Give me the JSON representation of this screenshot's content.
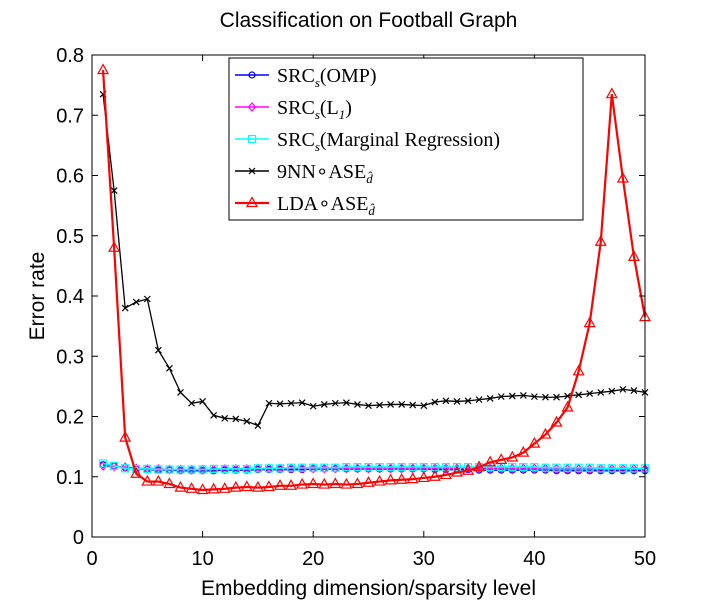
{
  "chart_data": {
    "type": "line",
    "title": "Classification on Football Graph",
    "xlabel": "Embedding dimension/sparsity level",
    "ylabel": "Error rate",
    "xlim": [
      0,
      50
    ],
    "ylim": [
      0,
      0.8
    ],
    "xticks": [
      0,
      10,
      20,
      30,
      40,
      50
    ],
    "yticks": [
      0,
      0.1,
      0.2,
      0.3,
      0.4,
      0.5,
      0.6,
      0.7,
      0.8
    ],
    "grid": false,
    "legend_position": "top-right",
    "x": [
      1,
      2,
      3,
      4,
      5,
      6,
      7,
      8,
      9,
      10,
      11,
      12,
      13,
      14,
      15,
      16,
      17,
      18,
      19,
      20,
      21,
      22,
      23,
      24,
      25,
      26,
      27,
      28,
      29,
      30,
      31,
      32,
      33,
      34,
      35,
      36,
      37,
      38,
      39,
      40,
      41,
      42,
      43,
      44,
      45,
      46,
      47,
      48,
      49,
      50
    ],
    "series": [
      {
        "name": "SRC(OMP)",
        "legend": {
          "base": "SRC",
          "sub": "s",
          "rest": "(OMP)"
        },
        "color": "#0000ff",
        "marker": "circle",
        "values": [
          0.12,
          0.118,
          0.115,
          0.113,
          0.112,
          0.111,
          0.111,
          0.11,
          0.11,
          0.11,
          0.11,
          0.111,
          0.111,
          0.111,
          0.112,
          0.112,
          0.112,
          0.112,
          0.112,
          0.113,
          0.113,
          0.113,
          0.113,
          0.113,
          0.113,
          0.113,
          0.113,
          0.113,
          0.113,
          0.113,
          0.112,
          0.112,
          0.112,
          0.112,
          0.111,
          0.111,
          0.111,
          0.111,
          0.111,
          0.111,
          0.111,
          0.11,
          0.11,
          0.11,
          0.11,
          0.11,
          0.11,
          0.11,
          0.11,
          0.11
        ]
      },
      {
        "name": "SRC(L1)",
        "legend": {
          "base": "SRC",
          "sub": "s",
          "rest": "(L",
          "sub2": "1",
          "rest2": ")"
        },
        "color": "#ff00ff",
        "marker": "diamond",
        "values": [
          0.118,
          0.117,
          0.116,
          0.114,
          0.113,
          0.113,
          0.112,
          0.112,
          0.112,
          0.112,
          0.112,
          0.113,
          0.113,
          0.113,
          0.114,
          0.114,
          0.114,
          0.114,
          0.114,
          0.114,
          0.114,
          0.114,
          0.114,
          0.114,
          0.114,
          0.114,
          0.114,
          0.114,
          0.114,
          0.114,
          0.114,
          0.114,
          0.114,
          0.114,
          0.114,
          0.114,
          0.114,
          0.114,
          0.114,
          0.114,
          0.114,
          0.113,
          0.113,
          0.113,
          0.113,
          0.113,
          0.113,
          0.113,
          0.113,
          0.113
        ]
      },
      {
        "name": "SRC(Marginal Regression)",
        "legend": {
          "base": "SRC",
          "sub": "s",
          "rest": "(Marginal Regression)"
        },
        "color": "#00ffff",
        "marker": "square",
        "values": [
          0.122,
          0.118,
          0.114,
          0.113,
          0.113,
          0.112,
          0.112,
          0.112,
          0.112,
          0.112,
          0.113,
          0.113,
          0.113,
          0.113,
          0.114,
          0.114,
          0.114,
          0.115,
          0.115,
          0.115,
          0.115,
          0.115,
          0.116,
          0.116,
          0.116,
          0.116,
          0.116,
          0.116,
          0.116,
          0.116,
          0.116,
          0.116,
          0.116,
          0.116,
          0.116,
          0.116,
          0.116,
          0.116,
          0.116,
          0.116,
          0.115,
          0.115,
          0.115,
          0.115,
          0.115,
          0.114,
          0.114,
          0.114,
          0.114,
          0.114
        ]
      },
      {
        "name": "9NN∘ASE",
        "legend": {
          "base": "9NN∘ASE",
          "sub": "d̂",
          "rest": ""
        },
        "color": "#000000",
        "marker": "x",
        "values": [
          0.735,
          0.575,
          0.38,
          0.39,
          0.395,
          0.31,
          0.28,
          0.24,
          0.222,
          0.225,
          0.202,
          0.197,
          0.196,
          0.192,
          0.185,
          0.222,
          0.221,
          0.222,
          0.223,
          0.217,
          0.22,
          0.222,
          0.223,
          0.22,
          0.218,
          0.219,
          0.22,
          0.22,
          0.219,
          0.218,
          0.224,
          0.226,
          0.225,
          0.226,
          0.228,
          0.23,
          0.233,
          0.234,
          0.235,
          0.233,
          0.232,
          0.232,
          0.234,
          0.236,
          0.238,
          0.24,
          0.242,
          0.245,
          0.243,
          0.24
        ]
      },
      {
        "name": "LDA∘ASE",
        "legend": {
          "base": "LDA∘ASE",
          "sub": "d̂",
          "rest": ""
        },
        "color": "#ff0000",
        "marker": "triangle",
        "values": [
          0.775,
          0.48,
          0.165,
          0.105,
          0.092,
          0.092,
          0.088,
          0.082,
          0.08,
          0.078,
          0.079,
          0.08,
          0.082,
          0.083,
          0.082,
          0.083,
          0.085,
          0.085,
          0.087,
          0.088,
          0.087,
          0.088,
          0.087,
          0.088,
          0.09,
          0.092,
          0.094,
          0.095,
          0.096,
          0.098,
          0.1,
          0.103,
          0.107,
          0.11,
          0.116,
          0.124,
          0.128,
          0.132,
          0.14,
          0.155,
          0.17,
          0.19,
          0.215,
          0.275,
          0.355,
          0.49,
          0.735,
          0.595,
          0.465,
          0.365
        ]
      }
    ]
  }
}
